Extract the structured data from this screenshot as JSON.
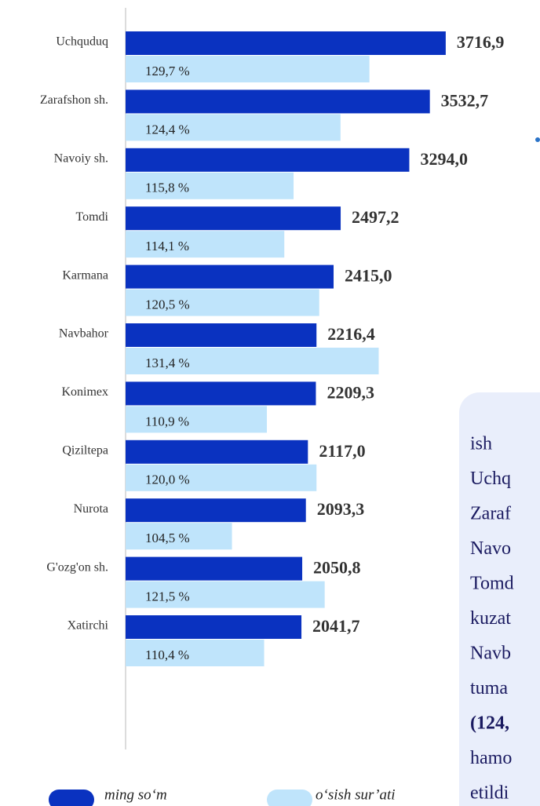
{
  "chart_data": {
    "type": "bar",
    "orientation": "horizontal",
    "categories": [
      "Uchquduq",
      "Zarafshon sh.",
      "Navoiy sh.",
      "Tomdi",
      "Karmana",
      "Navbahor",
      "Konimex",
      "Qiziltepa",
      "Nurota",
      "G'ozg'on sh.",
      "Xatirchi"
    ],
    "series": [
      {
        "name": "ming so‘m",
        "color": "#0a32c0",
        "values": [
          3716.9,
          3532.7,
          3294.0,
          2497.2,
          2415.0,
          2216.4,
          2209.3,
          2117.0,
          2093.3,
          2050.8,
          2041.7
        ],
        "value_labels": [
          "3716,9",
          "3532,7",
          "3294,0",
          "2497,2",
          "2415,0",
          "2216,4",
          "2209,3",
          "2117,0",
          "2093,3",
          "2050,8",
          "2041,7"
        ]
      },
      {
        "name": "o‘sish sur’ati",
        "color": "#bfe4fb",
        "axis": "x2",
        "values": [
          129.7,
          124.4,
          115.8,
          114.1,
          120.5,
          131.4,
          110.9,
          120.0,
          104.5,
          121.5,
          110.4
        ],
        "value_labels": [
          "129,7 %",
          "124,4 %",
          "115,8 %",
          "114,1 %",
          "120,5 %",
          "131,4 %",
          "110,9 %",
          "120,0 %",
          "104,5 %",
          "121,5 %",
          "110,4 %"
        ]
      }
    ],
    "xlim": [
      0,
      3800
    ],
    "x2lim": [
      85,
      145
    ]
  },
  "text_box": {
    "lines": [
      "ish",
      "Uchq",
      "Zaraf",
      "Navo",
      "Tomd",
      "kuzat",
      "Navb",
      "tuma",
      "(124,",
      "hamo",
      "etildi"
    ]
  }
}
